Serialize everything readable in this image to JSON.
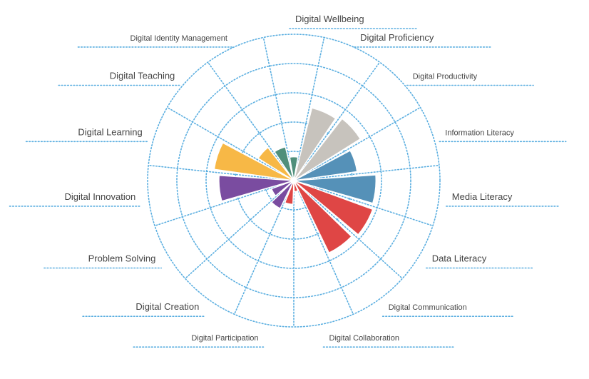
{
  "chart_data": {
    "type": "bar",
    "subtype": "polar-area",
    "categories": [
      "Digital Wellbeing",
      "Digital Proficiency",
      "Digital Productivity",
      "Information Literacy",
      "Media Literacy",
      "Data Literacy",
      "Digital Communication",
      "Digital Collaboration",
      "Digital Participation",
      "Digital Creation",
      "Problem Solving",
      "Digital Innovation",
      "Digital Learning",
      "Digital Teaching",
      "Digital Identity Management"
    ],
    "values": [
      1.3,
      4.1,
      4.3,
      3.5,
      4.5,
      4.6,
      4.4,
      0.6,
      1.3,
      1.7,
      1.3,
      4.1,
      4.4,
      2.3,
      1.9
    ],
    "colors": [
      "#4f8f7b",
      "#c7c3bd",
      "#c7c3bd",
      "#5591b8",
      "#5591b8",
      "#df4645",
      "#df4645",
      "#df4645",
      "#df4645",
      "#7a4ca0",
      "#7a4ca0",
      "#7a4ca0",
      "#f7b846",
      "#f7b846",
      "#4f8f7b"
    ],
    "rlim": [
      0,
      8
    ],
    "ring_count": 5,
    "grid": true,
    "grid_style": "dotted",
    "grid_color": "#5aaee0",
    "label_color": "#444444"
  }
}
